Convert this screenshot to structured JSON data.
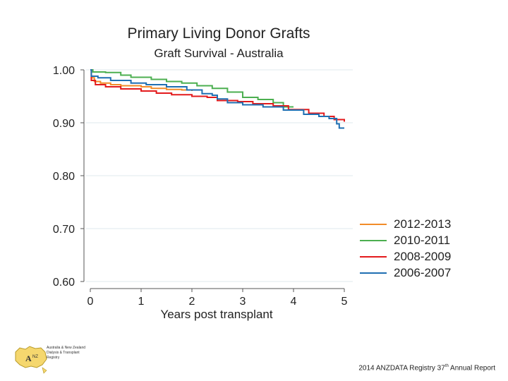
{
  "chart_data": {
    "type": "line",
    "title": "Primary Living Donor Grafts",
    "subtitle": "Graft Survival - Australia",
    "xlabel": "Years post transplant",
    "ylabel": "",
    "xlim": [
      0,
      5
    ],
    "ylim": [
      0.6,
      1.0
    ],
    "xticks": [
      "0",
      "1",
      "2",
      "3",
      "4",
      "5"
    ],
    "yticks": [
      "0.60",
      "0.70",
      "0.80",
      "0.90",
      "1.00"
    ],
    "ytick_values": [
      0.6,
      0.7,
      0.8,
      0.9,
      1.0
    ],
    "xtick_values": [
      0,
      1,
      2,
      3,
      4,
      5
    ],
    "grid": "horizontal",
    "legend_position": "bottom-right",
    "series": [
      {
        "name": "2012-2013",
        "color": "#f28c28",
        "points": [
          [
            0,
            1.0
          ],
          [
            0.02,
            0.985
          ],
          [
            0.08,
            0.978
          ],
          [
            0.2,
            0.975
          ],
          [
            0.4,
            0.972
          ],
          [
            0.6,
            0.97
          ],
          [
            1.0,
            0.968
          ],
          [
            1.2,
            0.965
          ],
          [
            1.5,
            0.963
          ],
          [
            1.8,
            0.962
          ],
          [
            2.0,
            0.96
          ]
        ]
      },
      {
        "name": "2010-2011",
        "color": "#4caf50",
        "points": [
          [
            0,
            1.0
          ],
          [
            0.05,
            0.996
          ],
          [
            0.3,
            0.995
          ],
          [
            0.6,
            0.99
          ],
          [
            0.8,
            0.986
          ],
          [
            1.2,
            0.982
          ],
          [
            1.5,
            0.978
          ],
          [
            1.8,
            0.975
          ],
          [
            2.1,
            0.97
          ],
          [
            2.4,
            0.965
          ],
          [
            2.7,
            0.958
          ],
          [
            3.0,
            0.948
          ],
          [
            3.3,
            0.944
          ],
          [
            3.6,
            0.938
          ],
          [
            3.8,
            0.93
          ],
          [
            4.0,
            0.93
          ]
        ]
      },
      {
        "name": "2008-2009",
        "color": "#e31a1c",
        "points": [
          [
            0,
            1.0
          ],
          [
            0.02,
            0.98
          ],
          [
            0.1,
            0.972
          ],
          [
            0.3,
            0.968
          ],
          [
            0.6,
            0.964
          ],
          [
            1.0,
            0.96
          ],
          [
            1.3,
            0.956
          ],
          [
            1.6,
            0.953
          ],
          [
            2.0,
            0.95
          ],
          [
            2.3,
            0.948
          ],
          [
            2.5,
            0.942
          ],
          [
            2.9,
            0.94
          ],
          [
            3.2,
            0.936
          ],
          [
            3.6,
            0.932
          ],
          [
            3.9,
            0.925
          ],
          [
            4.3,
            0.918
          ],
          [
            4.6,
            0.912
          ],
          [
            4.8,
            0.906
          ],
          [
            5.0,
            0.902
          ]
        ]
      },
      {
        "name": "2006-2007",
        "color": "#1f6fb2",
        "points": [
          [
            0,
            1.0
          ],
          [
            0.02,
            0.988
          ],
          [
            0.15,
            0.985
          ],
          [
            0.4,
            0.98
          ],
          [
            0.8,
            0.975
          ],
          [
            1.1,
            0.972
          ],
          [
            1.5,
            0.968
          ],
          [
            1.9,
            0.962
          ],
          [
            2.2,
            0.955
          ],
          [
            2.4,
            0.952
          ],
          [
            2.5,
            0.945
          ],
          [
            2.7,
            0.938
          ],
          [
            3.0,
            0.934
          ],
          [
            3.4,
            0.93
          ],
          [
            3.8,
            0.924
          ],
          [
            4.2,
            0.916
          ],
          [
            4.5,
            0.912
          ],
          [
            4.7,
            0.908
          ],
          [
            4.85,
            0.898
          ],
          [
            4.9,
            0.89
          ],
          [
            5.0,
            0.89
          ]
        ]
      }
    ]
  },
  "footer": {
    "prefix": "2014 ANZDATA Registry 37",
    "suffix_sup": "th",
    "suffix": " Annual Report"
  },
  "logo": {
    "text": "Australia & New Zealand Dialysis & Transplant Registry",
    "badge": "ANZ DATA"
  }
}
